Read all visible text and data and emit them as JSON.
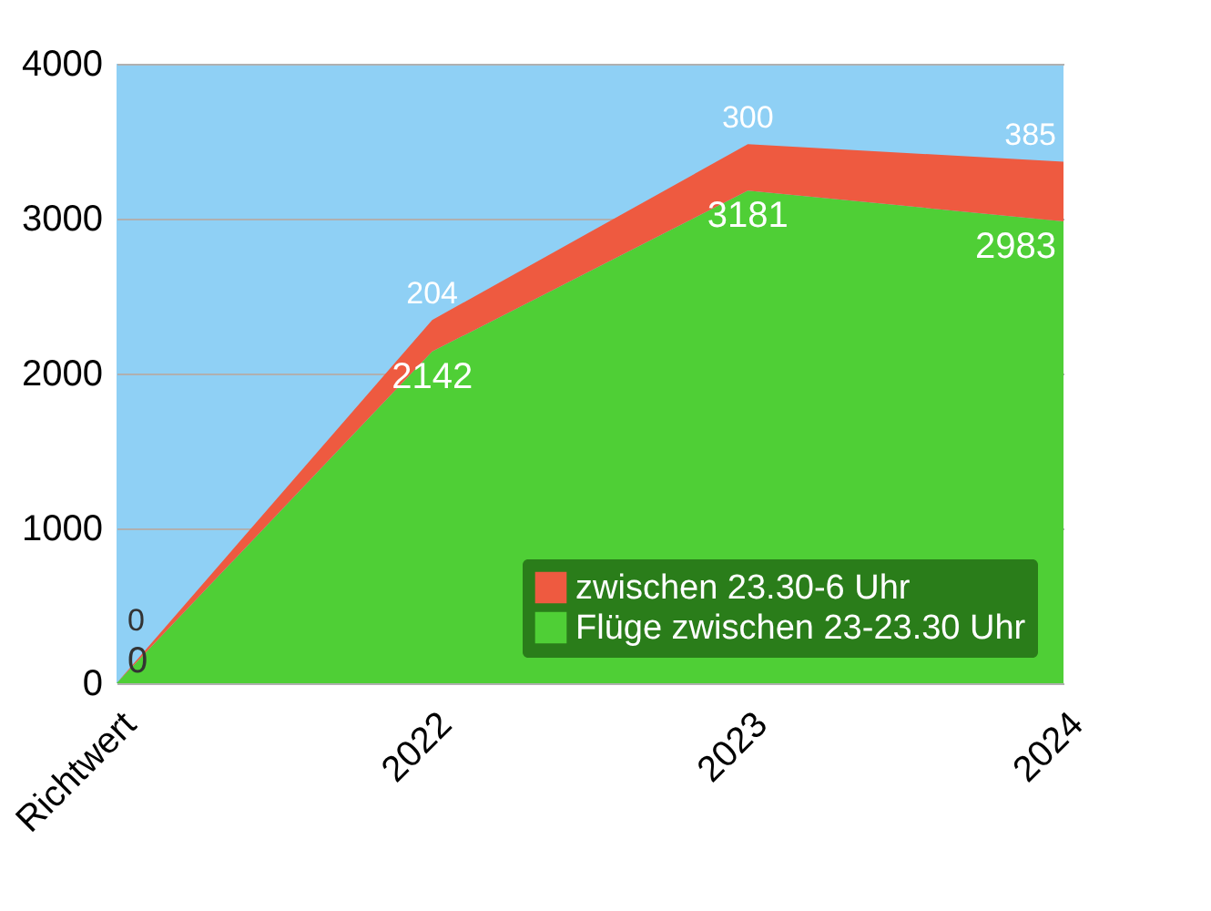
{
  "chart_data": {
    "type": "area",
    "stacked": true,
    "categories": [
      "Richtwert",
      "2022",
      "2023",
      "2024"
    ],
    "series": [
      {
        "name": "Flüge zwischen 23-23.30 Uhr",
        "color": "#4fcf36",
        "values": [
          0,
          2142,
          3181,
          2983
        ]
      },
      {
        "name": "zwischen 23.30-6 Uhr",
        "color": "#ee5a40",
        "values": [
          0,
          204,
          300,
          385
        ]
      }
    ],
    "ylim": [
      0,
      4000
    ],
    "yticks": [
      0,
      1000,
      2000,
      3000,
      4000
    ],
    "grid": "y",
    "legend": "bottom right",
    "data_labels": true
  }
}
